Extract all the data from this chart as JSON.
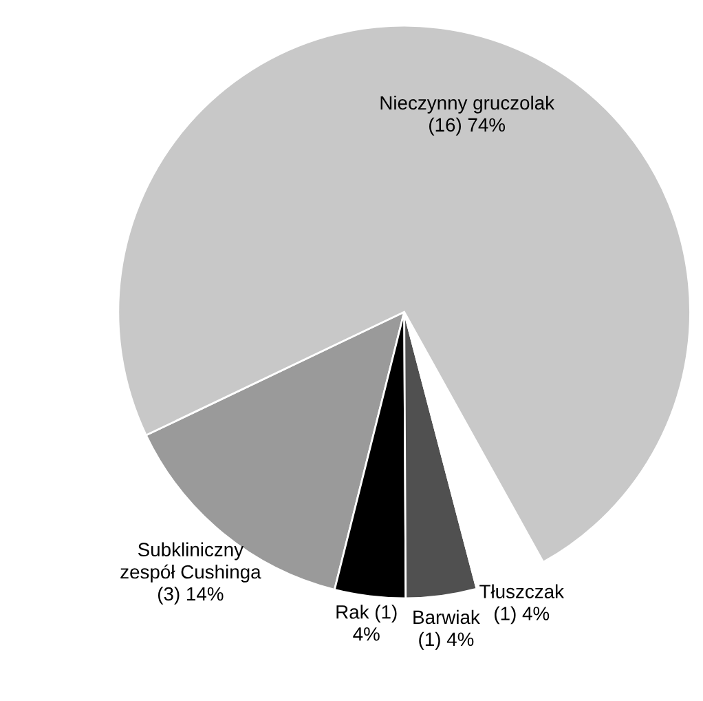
{
  "chart_data": {
    "type": "pie",
    "categories": [
      "Subkliniczny\nzespół Cushinga\n(3) 14%",
      "Rak (1)\n4%",
      "Barwiak\n(1) 4%",
      "Tłuszczak\n(1) 4%",
      "Nieczynny gruczolak\n(16) 74%"
    ],
    "values": [
      14,
      4,
      4,
      4,
      74
    ],
    "colors": [
      "#9a9a9a",
      "#000000",
      "#505050",
      "#ffffff",
      "#c8c8c8"
    ]
  }
}
